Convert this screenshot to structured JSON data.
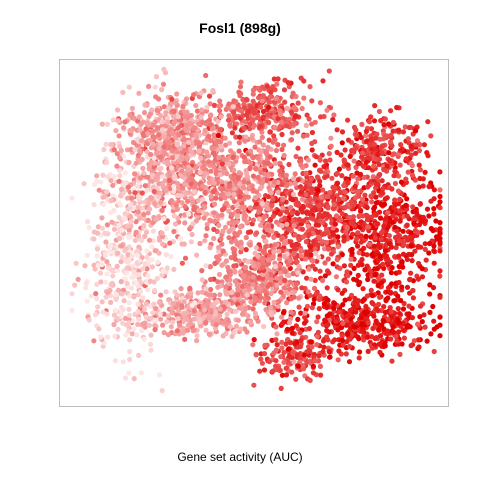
{
  "chart_data": {
    "type": "scatter",
    "title": "Fosl1 (898g)",
    "xlabel": "Gene set activity (AUC)",
    "ylabel": "",
    "grid": false,
    "legend": "none",
    "color_scale": {
      "low": "#fde6e6",
      "high": "#e00000"
    },
    "clusters": [
      {
        "cx": 0.6,
        "cy": 0.88,
        "sx": 0.05,
        "sy": 0.04,
        "n": 140,
        "auc": 0.7
      },
      {
        "cx": 0.78,
        "cy": 0.78,
        "sx": 0.1,
        "sy": 0.05,
        "n": 420,
        "auc": 0.88
      },
      {
        "cx": 0.85,
        "cy": 0.5,
        "sx": 0.08,
        "sy": 0.1,
        "n": 520,
        "auc": 0.88
      },
      {
        "cx": 0.64,
        "cy": 0.45,
        "sx": 0.08,
        "sy": 0.1,
        "n": 600,
        "auc": 0.72
      },
      {
        "cx": 0.5,
        "cy": 0.65,
        "sx": 0.07,
        "sy": 0.06,
        "n": 380,
        "auc": 0.42
      },
      {
        "cx": 0.4,
        "cy": 0.35,
        "sx": 0.1,
        "sy": 0.1,
        "n": 700,
        "auc": 0.4
      },
      {
        "cx": 0.33,
        "cy": 0.75,
        "sx": 0.08,
        "sy": 0.04,
        "n": 300,
        "auc": 0.3
      },
      {
        "cx": 0.15,
        "cy": 0.55,
        "sx": 0.06,
        "sy": 0.16,
        "n": 480,
        "auc": 0.1
      },
      {
        "cx": 0.25,
        "cy": 0.3,
        "sx": 0.06,
        "sy": 0.1,
        "n": 340,
        "auc": 0.3
      },
      {
        "cx": 0.52,
        "cy": 0.13,
        "sx": 0.07,
        "sy": 0.04,
        "n": 260,
        "auc": 0.62
      },
      {
        "cx": 0.84,
        "cy": 0.26,
        "sx": 0.06,
        "sy": 0.06,
        "n": 240,
        "auc": 0.78
      },
      {
        "cx": 0.27,
        "cy": 0.17,
        "sx": 0.06,
        "sy": 0.05,
        "n": 220,
        "auc": 0.35
      }
    ]
  }
}
